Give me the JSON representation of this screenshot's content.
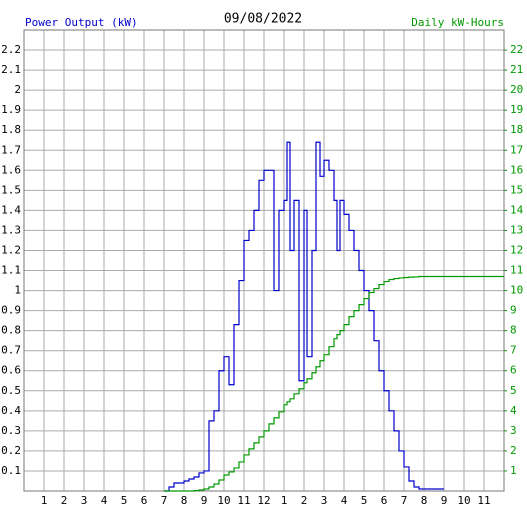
{
  "chart_data": {
    "type": "step-line",
    "title": "09/08/2022",
    "y_label": "Power Output (kW)",
    "y2_label": "Daily kW-Hours",
    "grid": true,
    "xlim": [
      0,
      24
    ],
    "xticks": [
      1,
      2,
      3,
      4,
      5,
      6,
      7,
      8,
      9,
      10,
      11,
      12,
      {
        "value": 13,
        "label": "1"
      },
      {
        "value": 14,
        "label": "2"
      },
      {
        "value": 15,
        "label": "3"
      },
      {
        "value": 16,
        "label": "4"
      },
      {
        "value": 17,
        "label": "5"
      },
      {
        "value": 18,
        "label": "6"
      },
      {
        "value": 19,
        "label": "7"
      },
      {
        "value": 20,
        "label": "8"
      },
      {
        "value": 21,
        "label": "9"
      },
      {
        "value": 22,
        "label": "10"
      },
      {
        "value": 23,
        "label": "11"
      }
    ],
    "ylim": [
      0,
      2.3
    ],
    "yticks": [
      0.1,
      0.2,
      0.3,
      0.4,
      0.5,
      0.6,
      0.7,
      0.8,
      0.9,
      1.0,
      1.1,
      1.2,
      1.3,
      1.4,
      1.5,
      1.6,
      1.7,
      1.8,
      1.9,
      2.0,
      2.1,
      2.2
    ],
    "y2lim": [
      0,
      23
    ],
    "y2ticks": [
      1,
      2,
      3,
      4,
      5,
      6,
      7,
      8,
      9,
      10,
      11,
      12,
      13,
      14,
      15,
      16,
      17,
      18,
      19,
      20,
      21,
      22
    ],
    "x": [
      7,
      7.25,
      7.5,
      7.75,
      8,
      8.25,
      8.5,
      8.75,
      9,
      9.25,
      9.5,
      9.75,
      10,
      10.25,
      10.5,
      10.75,
      11,
      11.25,
      11.5,
      11.75,
      12,
      12.25,
      12.5,
      12.75,
      13,
      13.15,
      13.3,
      13.5,
      13.75,
      14,
      14.15,
      14.4,
      14.6,
      14.8,
      15,
      15.25,
      15.5,
      15.65,
      15.8,
      16,
      16.25,
      16.5,
      16.75,
      17,
      17.25,
      17.5,
      17.75,
      18,
      18.25,
      18.5,
      18.75,
      19,
      19.25,
      19.5,
      19.75,
      20,
      21,
      24
    ],
    "series": [
      {
        "name": "Power Output",
        "color": "#0000cc",
        "axis": "y",
        "values": [
          0,
          0.02,
          0.04,
          0.04,
          0.05,
          0.06,
          0.07,
          0.09,
          0.1,
          0.35,
          0.4,
          0.6,
          0.67,
          0.53,
          0.83,
          1.05,
          1.25,
          1.3,
          1.4,
          1.55,
          1.6,
          1.6,
          1.0,
          1.4,
          1.45,
          1.74,
          1.2,
          1.45,
          0.55,
          1.4,
          0.67,
          1.2,
          1.74,
          1.57,
          1.65,
          1.6,
          1.45,
          1.2,
          1.45,
          1.38,
          1.3,
          1.2,
          1.1,
          1.0,
          0.9,
          0.75,
          0.6,
          0.5,
          0.4,
          0.3,
          0.2,
          0.12,
          0.05,
          0.02,
          0.01,
          0.01,
          0.01,
          null
        ]
      },
      {
        "name": "Daily kW-Hours",
        "color": "#009900",
        "axis": "y2",
        "values": [
          0,
          0,
          0,
          0,
          0,
          0,
          0.02,
          0.05,
          0.1,
          0.2,
          0.35,
          0.55,
          0.8,
          0.95,
          1.15,
          1.45,
          1.8,
          2.1,
          2.4,
          2.7,
          3.0,
          3.35,
          3.65,
          3.95,
          4.3,
          4.45,
          4.6,
          4.85,
          5.1,
          5.4,
          5.6,
          5.9,
          6.2,
          6.5,
          6.8,
          7.2,
          7.6,
          7.8,
          8.0,
          8.3,
          8.7,
          9.0,
          9.3,
          9.6,
          9.9,
          10.1,
          10.3,
          10.45,
          10.55,
          10.6,
          10.63,
          10.65,
          10.67,
          10.68,
          10.7,
          10.7,
          10.7,
          10.7
        ]
      }
    ]
  }
}
